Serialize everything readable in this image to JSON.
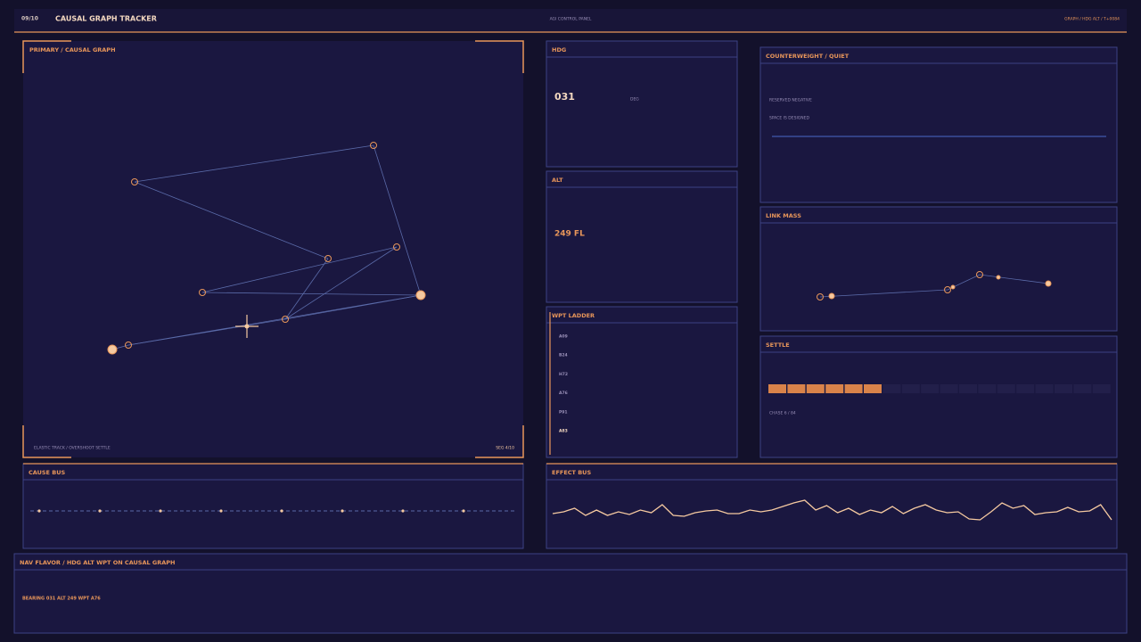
{
  "header": {
    "index": "09/10",
    "title": "CAUSAL GRAPH TRACKER",
    "center": "AGI CONTROL PANEL",
    "right": "GRAPH / HDG ALT / T+0084"
  },
  "primary": {
    "title": "PRIMARY / CAUSAL GRAPH",
    "footer_left": "ELASTIC TRACK / OVERSHOOT SETTLE",
    "footer_right": "SEG 4/10"
  },
  "hdg": {
    "title": "HDG",
    "value": "031",
    "unit": "DEG"
  },
  "alt": {
    "title": "ALT",
    "value": "249 FL"
  },
  "wpt": {
    "title": "WPT LADDER",
    "items": [
      "A09",
      "B24",
      "H72",
      "A76",
      "P91",
      "A83"
    ]
  },
  "counterweight": {
    "title": "COUNTERWEIGHT / QUIET",
    "lines": [
      "RESERVED NEGATIVE",
      "SPACE IS DESIGNED"
    ]
  },
  "link_mass": {
    "title": "LINK MASS"
  },
  "settle": {
    "title": "SETTLE",
    "caption": "CHASE 6 / 84"
  },
  "cause_bus": {
    "title": "CAUSE BUS"
  },
  "effect_bus": {
    "title": "EFFECT BUS",
    "values": [
      14,
      16,
      20,
      12,
      18,
      12,
      16,
      13,
      18,
      15,
      24,
      12,
      11,
      15,
      17,
      18,
      14,
      14,
      18,
      16,
      18,
      22,
      26,
      29,
      18,
      23,
      15,
      20,
      13,
      18,
      15,
      22,
      14,
      20,
      24,
      18,
      15,
      16,
      8,
      7,
      16,
      26,
      20,
      23,
      13,
      15,
      16,
      21,
      16,
      17,
      24,
      7
    ]
  },
  "nav": {
    "title": "NAV FLAVOR / HDG ALT WPT ON CAUSAL GRAPH",
    "readout": "BEARING 031  ALT 249  WPT A76"
  }
}
